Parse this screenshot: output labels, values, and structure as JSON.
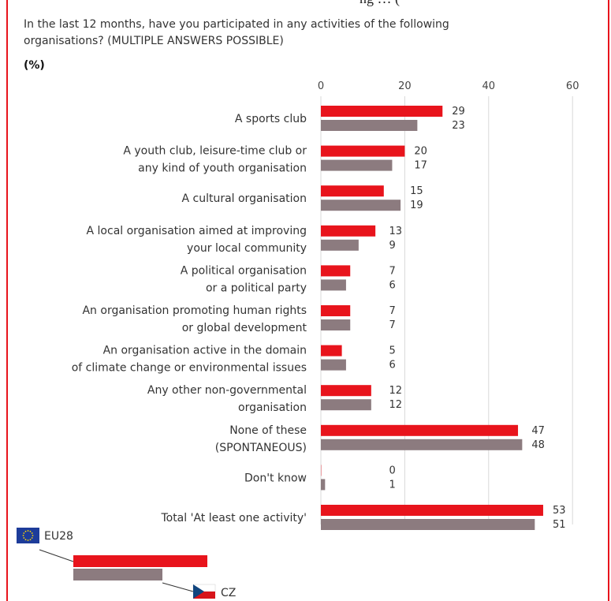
{
  "header": {
    "cut_text": "ng … (",
    "question_line1": "In the last 12 months, have you participated in any activities of the following",
    "question_line2": "organisations? (MULTIPLE ANSWERS POSSIBLE)",
    "unit": "(%)"
  },
  "colors": {
    "eu28": "#e8141c",
    "cz": "#8c7b7f",
    "frame": "#e8141c",
    "grid": "#d9d9d9"
  },
  "chart_data": {
    "type": "bar",
    "orientation": "horizontal",
    "xlim": [
      0,
      60
    ],
    "xticks": [
      0,
      20,
      40,
      60
    ],
    "grid": true,
    "categories": [
      [
        "A sports club"
      ],
      [
        "A youth club, leisure-time club or",
        "any kind of youth organisation"
      ],
      [
        "A cultural organisation"
      ],
      [
        "A local organisation aimed at improving",
        "your local community"
      ],
      [
        "A political organisation",
        "or a political party"
      ],
      [
        "An organisation promoting human rights",
        "or global development"
      ],
      [
        "An organisation active in the domain",
        "of climate change or environmental issues"
      ],
      [
        "Any other non-governmental",
        "organisation"
      ],
      [
        "None of these",
        "(SPONTANEOUS)"
      ],
      [
        "Don't know"
      ],
      [
        "Total 'At least one activity'"
      ]
    ],
    "series": [
      {
        "name": "EU28",
        "color": "#e8141c",
        "values": [
          29,
          20,
          15,
          13,
          7,
          7,
          5,
          12,
          47,
          0,
          53
        ]
      },
      {
        "name": "CZ",
        "color": "#8c7b7f",
        "values": [
          23,
          17,
          19,
          9,
          6,
          7,
          6,
          12,
          48,
          1,
          51
        ]
      }
    ],
    "legend_position": "bottom-left"
  }
}
